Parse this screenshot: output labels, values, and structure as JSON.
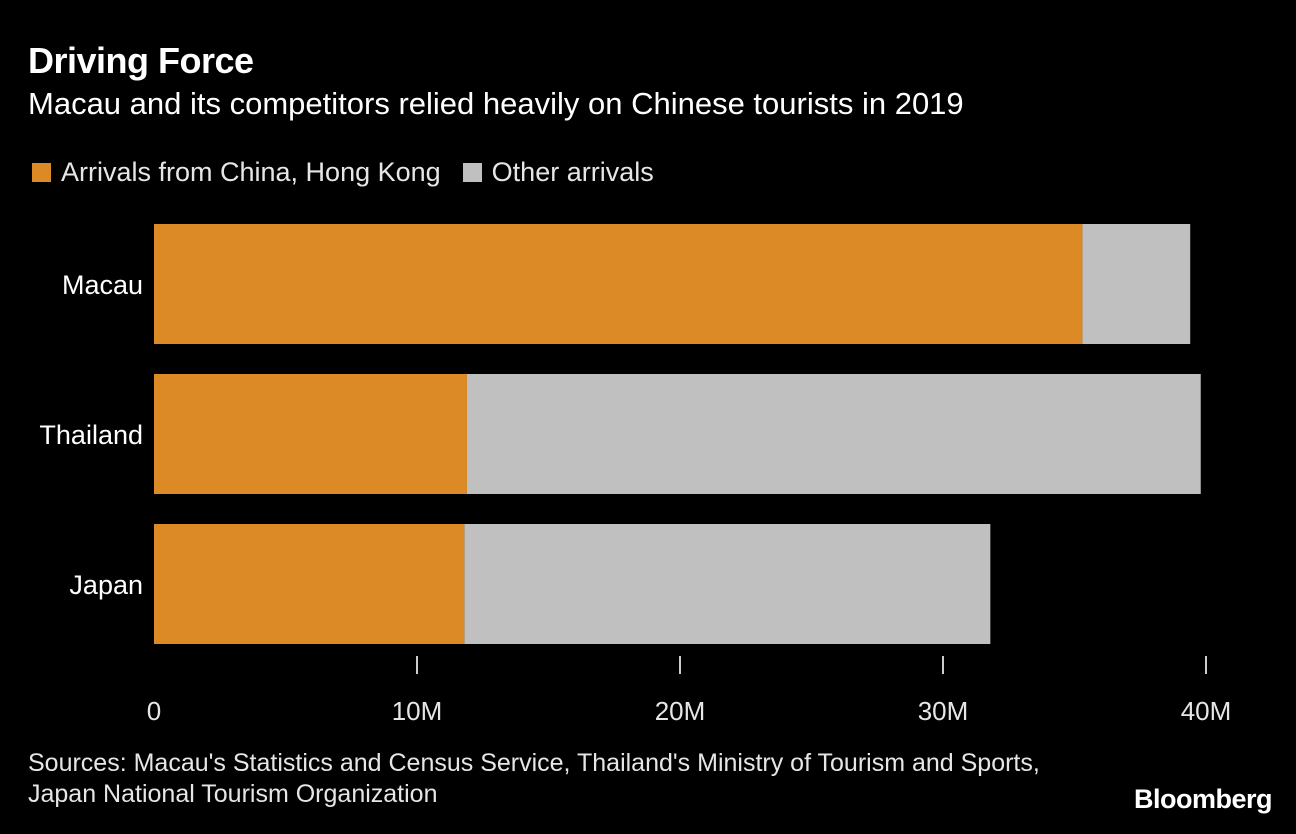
{
  "title": "Driving Force",
  "subtitle": "Macau and its competitors relied heavily on Chinese tourists in 2019",
  "source": "Sources: Macau's Statistics and Census Service, Thailand's Ministry of Tourism and Sports, Japan National Tourism Organization",
  "brand": "Bloomberg",
  "colors": {
    "background": "#000000",
    "china_hk": "#dc8a26",
    "other": "#c0c0c0",
    "text": "#ffffff",
    "tick": "#cccccc"
  },
  "chart_data": {
    "type": "bar",
    "orientation": "horizontal",
    "stacked": true,
    "categories": [
      "Macau",
      "Thailand",
      "Japan"
    ],
    "series": [
      {
        "name": "Arrivals from China, Hong Kong",
        "values": [
          35.3,
          11.9,
          11.8
        ],
        "color": "#dc8a26"
      },
      {
        "name": "Other arrivals",
        "values": [
          4.1,
          27.9,
          20.0
        ],
        "color": "#c0c0c0"
      }
    ],
    "xlim": [
      0,
      40
    ],
    "xticks": [
      0,
      10,
      20,
      30,
      40
    ],
    "xtick_labels": [
      "0",
      "10M",
      "20M",
      "30M",
      "40M"
    ],
    "xlabel": "",
    "ylabel": "",
    "grid": false,
    "legend_position": "top-left"
  }
}
